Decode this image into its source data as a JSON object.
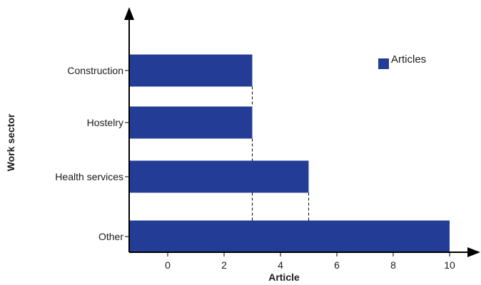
{
  "chart_data": {
    "type": "bar",
    "orientation": "horizontal",
    "categories": [
      "Construction",
      "Hostelry",
      "Health services",
      "Other"
    ],
    "series": [
      {
        "name": "Articles",
        "values": [
          3,
          3,
          5,
          10
        ]
      }
    ],
    "xlabel": "Article",
    "ylabel": "Work sector",
    "xticks": [
      0,
      2,
      4,
      6,
      8,
      10
    ],
    "xlim": [
      -1.3,
      10
    ],
    "grid": false,
    "legend_position": "top-right",
    "bar_color": "#233c95"
  }
}
